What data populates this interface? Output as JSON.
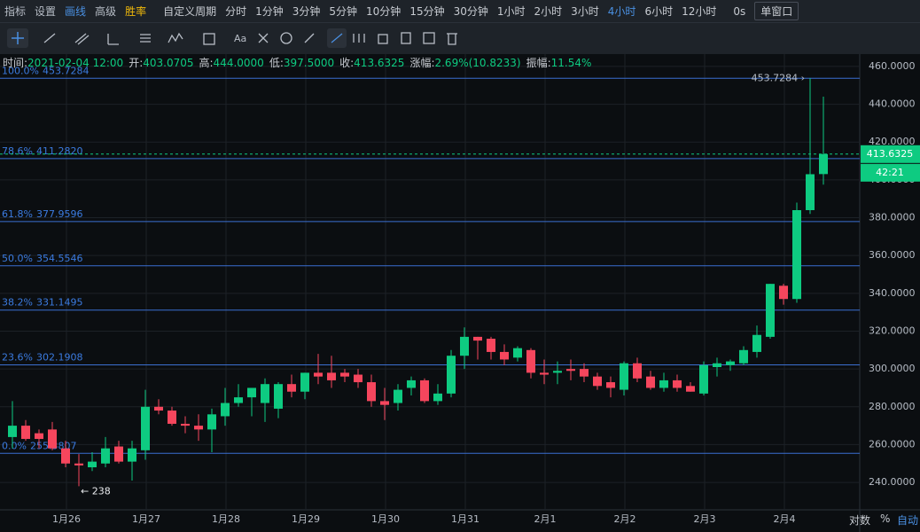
{
  "toolbar": {
    "left": [
      "指标",
      "设置",
      "画线",
      "高级",
      "胜率"
    ],
    "custom": "自定义周期",
    "periods": [
      "分时",
      "1分钟",
      "3分钟",
      "5分钟",
      "10分钟",
      "15分钟",
      "30分钟",
      "1小时",
      "2小时",
      "3小时",
      "4小时",
      "6小时",
      "12小时"
    ],
    "active_period": "4小时",
    "countdown_setting": "0s",
    "window": "单窗口"
  },
  "info": [
    {
      "label": "时间:",
      "value": "2021-02-04 12:00"
    },
    {
      "label": "开:",
      "value": "403.0705"
    },
    {
      "label": "高:",
      "value": "444.0000"
    },
    {
      "label": "低:",
      "value": "397.5000"
    },
    {
      "label": "收:",
      "value": "413.6325"
    },
    {
      "label": "涨幅:",
      "value": "2.69%(10.8233)"
    },
    {
      "label": "振幅:",
      "value": "11.54%"
    }
  ],
  "chart": {
    "type": "candlestick",
    "up_color": "#0ecb81",
    "down_color": "#f6465d",
    "open": [
      264,
      270,
      266,
      268,
      258,
      250,
      248,
      250,
      259,
      251,
      257,
      280,
      278,
      271,
      270,
      268,
      275,
      282,
      285,
      282,
      279,
      292,
      288,
      298,
      298,
      298,
      297,
      293,
      283,
      282,
      290,
      294,
      283,
      287,
      307,
      317,
      316,
      309,
      306,
      310,
      298,
      298,
      300,
      300,
      296,
      293,
      289,
      303,
      296,
      290,
      294,
      291,
      287,
      301,
      302,
      303,
      309,
      317,
      344,
      337,
      384,
      403.0705
    ],
    "high": [
      283,
      273,
      268,
      272,
      262,
      255,
      256,
      264,
      262,
      262,
      289,
      284,
      280,
      275,
      276,
      279,
      290,
      292,
      290,
      295,
      293,
      297,
      298,
      308,
      307,
      300,
      300,
      297,
      290,
      292,
      296,
      295,
      292,
      310,
      322,
      317,
      317,
      313,
      312,
      311,
      305,
      304,
      305,
      303,
      298,
      296,
      304,
      306,
      299,
      298,
      297,
      293,
      304,
      306,
      305,
      312,
      323,
      345,
      345,
      388,
      453.7284,
      444
    ],
    "low": [
      258,
      262,
      258,
      257,
      248,
      238,
      246,
      248,
      250,
      241,
      252,
      276,
      270,
      266,
      262,
      256,
      270,
      280,
      275,
      272,
      274,
      285,
      284,
      292,
      290,
      293,
      290,
      280,
      273,
      278,
      286,
      282,
      281,
      285,
      300,
      305,
      305,
      302,
      304,
      295,
      292,
      292,
      294,
      293,
      289,
      285,
      286,
      293,
      289,
      288,
      288,
      288,
      286,
      296,
      299,
      302,
      306,
      316,
      334,
      335,
      382,
      397.5
    ],
    "close": [
      270,
      263,
      263,
      258,
      250,
      249,
      251,
      258,
      251,
      258,
      280,
      278,
      271,
      270,
      268,
      276,
      282,
      285,
      290,
      292,
      292,
      288,
      298,
      296,
      294,
      296,
      293,
      283,
      281,
      289,
      294,
      283,
      287,
      307,
      317,
      315,
      309,
      305,
      311,
      298,
      297,
      299,
      299,
      296,
      291,
      290,
      303,
      295,
      290,
      294,
      290,
      288,
      302,
      303,
      304,
      310,
      318,
      345,
      337,
      384,
      403,
      413.6325
    ],
    "ylim": [
      225.5,
      467
    ],
    "yticks": [
      {
        "value": 460,
        "label": "460.0000"
      },
      {
        "value": 440,
        "label": "440.0000"
      },
      {
        "value": 420,
        "label": "420.0000"
      },
      {
        "value": 400,
        "label": "400.0000"
      },
      {
        "value": 380,
        "label": "380.0000"
      },
      {
        "value": 360,
        "label": "360.0000"
      },
      {
        "value": 340,
        "label": "340.0000"
      },
      {
        "value": 320,
        "label": "320.0000"
      },
      {
        "value": 300,
        "label": "300.0000"
      },
      {
        "value": 280,
        "label": "280.0000"
      },
      {
        "value": 260,
        "label": "260.0000"
      },
      {
        "value": 240,
        "label": "240.0000"
      }
    ],
    "xticks": [
      "1月26",
      "1月27",
      "1月28",
      "1月29",
      "1月30",
      "1月31",
      "2月1",
      "2月2",
      "2月3",
      "2月4"
    ],
    "fib_levels": [
      {
        "ratio": "100.0%",
        "price": {
          "value": 453.7284,
          "label": "453.7284"
        }
      },
      {
        "ratio": "78.6%",
        "price": {
          "value": 411.282,
          "label": "411.2820"
        }
      },
      {
        "ratio": "61.8%",
        "price": {
          "value": 377.9596,
          "label": "377.9596"
        }
      },
      {
        "ratio": "50.0%",
        "price": {
          "value": 354.5546,
          "label": "354.5546"
        }
      },
      {
        "ratio": "38.2%",
        "price": {
          "value": 331.1495,
          "label": "331.1495"
        }
      },
      {
        "ratio": "23.6%",
        "price": {
          "value": 302.1908,
          "label": "302.1908"
        }
      },
      {
        "ratio": "0.0%",
        "price": {
          "value": 255.3807,
          "label": "255.3807"
        }
      }
    ],
    "max_label": "453.7284 ›",
    "min_label": "← 238",
    "countdown": "42:21"
  },
  "footer": [
    "对数",
    "%",
    "自动"
  ]
}
